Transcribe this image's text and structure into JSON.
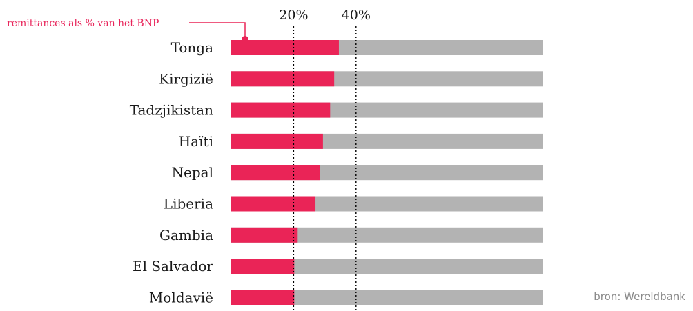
{
  "colors": {
    "accent": "#ea2457",
    "track": "#b3b3b3",
    "text": "#1a1a1a",
    "source": "#8a8a8a",
    "gridline": "#000000"
  },
  "chart_data": {
    "type": "bar",
    "orientation": "horizontal",
    "categories": [
      "Tonga",
      "Kirgizië",
      "Tadzjikistan",
      "Haïti",
      "Nepal",
      "Liberia",
      "Gambia",
      "El Salvador",
      "Moldavië"
    ],
    "series": [
      {
        "name": "remittances als % van het BNP",
        "values": [
          34.5,
          33,
          31.7,
          29.4,
          28.5,
          27,
          21.3,
          20.2,
          20.2
        ]
      }
    ],
    "xlim": [
      0,
      100
    ],
    "reference_lines": [
      {
        "value": 20,
        "label": "20%"
      },
      {
        "value": 40,
        "label": "40%"
      }
    ],
    "annotation": "remittances als % van het BNP",
    "source": "bron: Wereldbank",
    "grid": false,
    "legend": "none"
  }
}
